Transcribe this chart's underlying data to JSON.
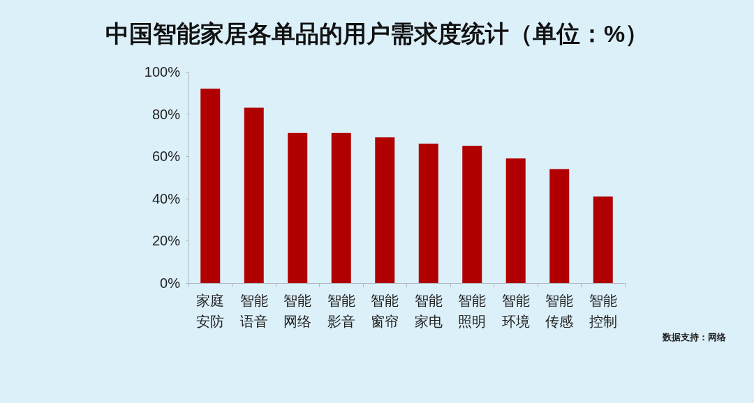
{
  "chart_data": {
    "type": "bar",
    "title": "中国智能家居各单品的用户需求度统计（单位：%）",
    "categories": [
      "家庭安防",
      "智能语音",
      "智能网络",
      "智能影音",
      "智能窗帘",
      "智能家电",
      "智能照明",
      "智能环境",
      "智能传感",
      "智能控制"
    ],
    "values": [
      92,
      83,
      71,
      71,
      69,
      66,
      65,
      59,
      54,
      41
    ],
    "color": "#b00000",
    "ylim": [
      0,
      100
    ],
    "yticks": [
      {
        "value": 0,
        "label": "0%"
      },
      {
        "value": 20,
        "label": "20%"
      },
      {
        "value": 40,
        "label": "40%"
      },
      {
        "value": 60,
        "label": "60%"
      },
      {
        "value": 80,
        "label": "80%"
      },
      {
        "value": 100,
        "label": "100%"
      }
    ],
    "grid": false,
    "annotations": [
      "数据支持：网络"
    ]
  }
}
